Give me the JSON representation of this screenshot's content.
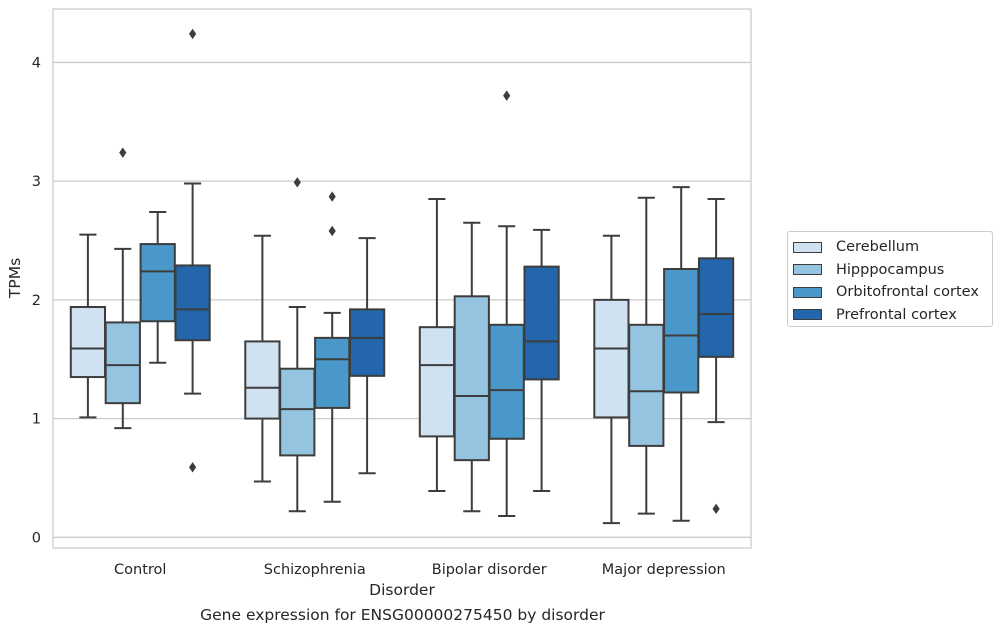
{
  "chart_data": {
    "type": "box",
    "caption": "Gene expression for ENSG00000275450 by disorder",
    "xlabel": "Disorder",
    "ylabel": "TPMs",
    "ylim": [
      -0.09,
      4.45
    ],
    "yticks": [
      0,
      1,
      2,
      3,
      4
    ],
    "grid": true,
    "legend_position": "right",
    "categories": [
      "Control",
      "Schizophrenia",
      "Bipolar disorder",
      "Major depression"
    ],
    "series": [
      {
        "name": "Cerebellum",
        "color": "#d0e1f2",
        "boxes": [
          {
            "whisker_low": 1.01,
            "q1": 1.35,
            "median": 1.59,
            "q3": 1.94,
            "whisker_high": 2.55,
            "outliers": []
          },
          {
            "whisker_low": 0.47,
            "q1": 1.0,
            "median": 1.26,
            "q3": 1.65,
            "whisker_high": 2.54,
            "outliers": []
          },
          {
            "whisker_low": 0.39,
            "q1": 0.85,
            "median": 1.45,
            "q3": 1.77,
            "whisker_high": 2.85,
            "outliers": []
          },
          {
            "whisker_low": 0.12,
            "q1": 1.01,
            "median": 1.59,
            "q3": 2.0,
            "whisker_high": 2.54,
            "outliers": []
          }
        ]
      },
      {
        "name": "Hipppocampus",
        "color": "#94c4df",
        "boxes": [
          {
            "whisker_low": 0.92,
            "q1": 1.13,
            "median": 1.45,
            "q3": 1.81,
            "whisker_high": 2.43,
            "outliers": [
              3.24
            ]
          },
          {
            "whisker_low": 0.22,
            "q1": 0.69,
            "median": 1.08,
            "q3": 1.42,
            "whisker_high": 1.94,
            "outliers": [
              2.99
            ]
          },
          {
            "whisker_low": 0.22,
            "q1": 0.65,
            "median": 1.19,
            "q3": 2.03,
            "whisker_high": 2.65,
            "outliers": []
          },
          {
            "whisker_low": 0.2,
            "q1": 0.77,
            "median": 1.23,
            "q3": 1.79,
            "whisker_high": 2.86,
            "outliers": []
          }
        ]
      },
      {
        "name": "Orbitofrontal cortex",
        "color": "#4a98c9",
        "boxes": [
          {
            "whisker_low": 1.47,
            "q1": 1.82,
            "median": 2.24,
            "q3": 2.47,
            "whisker_high": 2.74,
            "outliers": []
          },
          {
            "whisker_low": 0.3,
            "q1": 1.09,
            "median": 1.5,
            "q3": 1.68,
            "whisker_high": 1.89,
            "outliers": [
              2.58,
              2.87
            ]
          },
          {
            "whisker_low": 0.18,
            "q1": 0.83,
            "median": 1.24,
            "q3": 1.79,
            "whisker_high": 2.62,
            "outliers": [
              3.72
            ]
          },
          {
            "whisker_low": 0.14,
            "q1": 1.22,
            "median": 1.7,
            "q3": 2.26,
            "whisker_high": 2.95,
            "outliers": []
          }
        ]
      },
      {
        "name": "Prefrontal cortex",
        "color": "#2366ab",
        "boxes": [
          {
            "whisker_low": 1.21,
            "q1": 1.66,
            "median": 1.92,
            "q3": 2.29,
            "whisker_high": 2.98,
            "outliers": [
              0.59,
              4.24
            ]
          },
          {
            "whisker_low": 0.54,
            "q1": 1.36,
            "median": 1.68,
            "q3": 1.92,
            "whisker_high": 2.52,
            "outliers": []
          },
          {
            "whisker_low": 0.39,
            "q1": 1.33,
            "median": 1.65,
            "q3": 2.28,
            "whisker_high": 2.59,
            "outliers": []
          },
          {
            "whisker_low": 0.97,
            "q1": 1.52,
            "median": 1.88,
            "q3": 2.35,
            "whisker_high": 2.85,
            "outliers": [
              0.24
            ]
          }
        ]
      }
    ]
  }
}
